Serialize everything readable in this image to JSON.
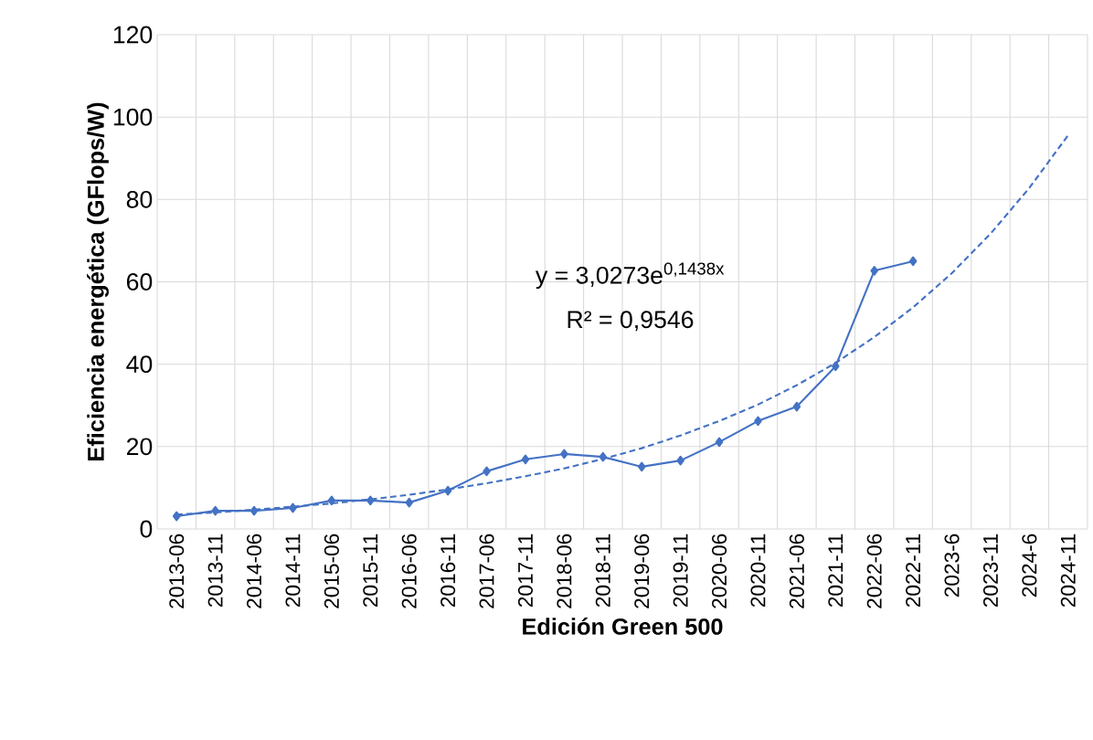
{
  "chart_data": {
    "type": "line",
    "xlabel": "Edición Green 500",
    "ylabel": "Eficiencia energética (GFlops/W)",
    "categories": [
      "2013-06",
      "2013-11",
      "2014-06",
      "2014-11",
      "2015-06",
      "2015-11",
      "2016-06",
      "2016-11",
      "2017-06",
      "2017-11",
      "2018-06",
      "2018-11",
      "2019-06",
      "2019-11",
      "2020-06",
      "2020-11",
      "2021-06",
      "2021-11",
      "2022-06",
      "2022-11",
      "2023-6",
      "2023-11",
      "2024-6",
      "2024-11"
    ],
    "series": [
      {
        "color": "#4472c4",
        "values": [
          3.1,
          4.4,
          4.4,
          5.1,
          6.9,
          6.9,
          6.4,
          9.3,
          14.0,
          16.9,
          18.2,
          17.5,
          15.1,
          16.6,
          21.1,
          26.2,
          29.7,
          39.5,
          62.7,
          65.0,
          null,
          null,
          null,
          null
        ]
      },
      {
        "type": "line",
        "color": "#4472c4",
        "line_style": "dashed",
        "marker": "none",
        "values": [
          3.5,
          4.0,
          4.7,
          5.4,
          6.2,
          7.2,
          8.3,
          9.6,
          11.1,
          12.8,
          14.7,
          17.0,
          19.6,
          22.7,
          26.2,
          30.2,
          34.9,
          40.3,
          46.6,
          53.8,
          62.1,
          71.7,
          82.8,
          95.6
        ]
      }
    ],
    "ylim": [
      0,
      120
    ],
    "yticks": [
      0,
      20,
      40,
      60,
      80,
      100,
      120
    ],
    "grid": true,
    "marker": "diamond",
    "line_style": "solid",
    "annotations": [
      "y = 3,0273e$^{0,1438x}$",
      "R² = 0,9546"
    ]
  }
}
